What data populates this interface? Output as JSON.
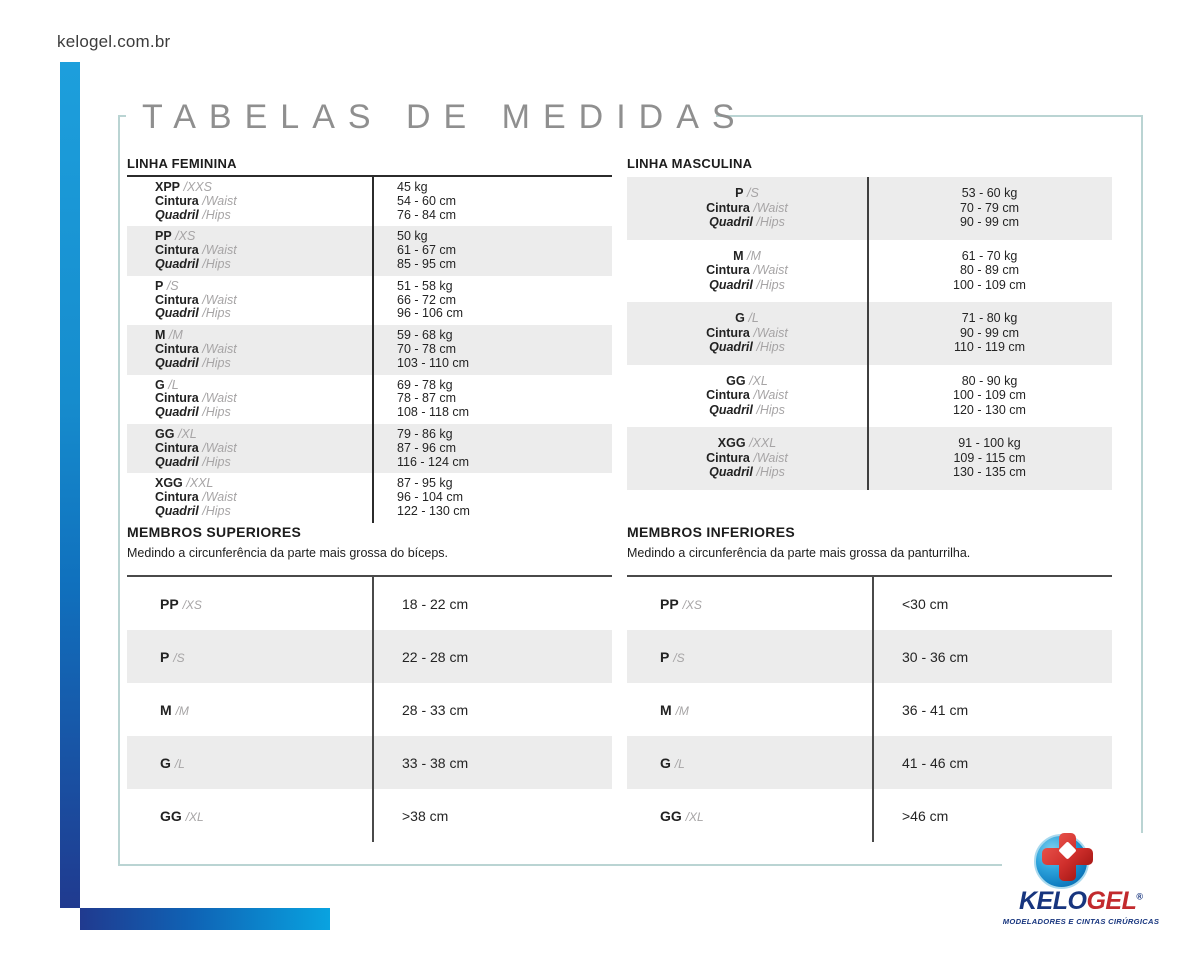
{
  "site": {
    "url": "kelogel.com.br"
  },
  "title": "TABELAS DE MEDIDAS",
  "labels": {
    "waist": "Cintura",
    "waist_alt": "/Waist",
    "hips": "Quadril",
    "hips_alt": "/Hips"
  },
  "feminina": {
    "heading": "LINHA FEMININA",
    "rows": [
      {
        "size": "XPP",
        "size_alt": "/XXS",
        "weight": "45 kg",
        "waist": "54 - 60 cm",
        "hips": "76 - 84 cm"
      },
      {
        "size": "PP",
        "size_alt": "/XS",
        "weight": "50 kg",
        "waist": "61 - 67 cm",
        "hips": "85 - 95 cm"
      },
      {
        "size": "P",
        "size_alt": "/S",
        "weight": "51 - 58 kg",
        "waist": "66 - 72 cm",
        "hips": "96 - 106 cm"
      },
      {
        "size": "M",
        "size_alt": "/M",
        "weight": "59 - 68 kg",
        "waist": "70 - 78 cm",
        "hips": "103 - 110 cm"
      },
      {
        "size": "G",
        "size_alt": "/L",
        "weight": "69 - 78 kg",
        "waist": "78 - 87 cm",
        "hips": "108 - 118 cm"
      },
      {
        "size": "GG",
        "size_alt": "/XL",
        "weight": "79 - 86 kg",
        "waist": "87 - 96 cm",
        "hips": "116 - 124 cm"
      },
      {
        "size": "XGG",
        "size_alt": "/XXL",
        "weight": "87 - 95 kg",
        "waist": "96 - 104 cm",
        "hips": "122 - 130 cm"
      }
    ]
  },
  "masculina": {
    "heading": "LINHA MASCULINA",
    "rows": [
      {
        "size": "P",
        "size_alt": "/S",
        "weight": "53 - 60 kg",
        "waist": "70 - 79 cm",
        "hips": "90 - 99 cm"
      },
      {
        "size": "M",
        "size_alt": "/M",
        "weight": "61 - 70 kg",
        "waist": "80 - 89 cm",
        "hips": "100 - 109 cm"
      },
      {
        "size": "G",
        "size_alt": "/L",
        "weight": "71 - 80 kg",
        "waist": "90 - 99 cm",
        "hips": "110 - 119 cm"
      },
      {
        "size": "GG",
        "size_alt": "/XL",
        "weight": "80 - 90 kg",
        "waist": "100 - 109 cm",
        "hips": "120 - 130 cm"
      },
      {
        "size": "XGG",
        "size_alt": "/XXL",
        "weight": "91 - 100 kg",
        "waist": "109 - 115 cm",
        "hips": "130 - 135 cm"
      }
    ]
  },
  "superiores": {
    "heading": "MEMBROS SUPERIORES",
    "subtitle": "Medindo a circunferência da parte mais grossa do bíceps.",
    "rows": [
      {
        "size": "PP",
        "size_alt": "/XS",
        "value": "18 - 22 cm"
      },
      {
        "size": "P",
        "size_alt": "/S",
        "value": "22 - 28 cm"
      },
      {
        "size": "M",
        "size_alt": "/M",
        "value": "28 - 33 cm"
      },
      {
        "size": "G",
        "size_alt": "/L",
        "value": "33 - 38 cm"
      },
      {
        "size": "GG",
        "size_alt": "/XL",
        "value": ">38 cm"
      }
    ]
  },
  "inferiores": {
    "heading": "MEMBROS INFERIORES",
    "subtitle": "Medindo a circunferência da parte mais grossa da panturrilha.",
    "rows": [
      {
        "size": "PP",
        "size_alt": "/XS",
        "value": "<30 cm"
      },
      {
        "size": "P",
        "size_alt": "/S",
        "value": "30 - 36 cm"
      },
      {
        "size": "M",
        "size_alt": "/M",
        "value": "36 - 41 cm"
      },
      {
        "size": "G",
        "size_alt": "/L",
        "value": "41 - 46 cm"
      },
      {
        "size": "GG",
        "size_alt": "/XL",
        "value": ">46 cm"
      }
    ]
  },
  "logo": {
    "brand_primary": "KELO",
    "brand_secondary": "GEL",
    "registered": "®",
    "tagline": "MODELADORES E CINTAS CIRÚRGICAS"
  },
  "colors": {
    "accent_blue": "#1d9fdc",
    "accent_navy": "#203a8f",
    "row_stripe": "#ececec",
    "frame_teal": "#bad4d3",
    "logo_navy": "#17357e",
    "logo_red": "#c22a2d"
  }
}
